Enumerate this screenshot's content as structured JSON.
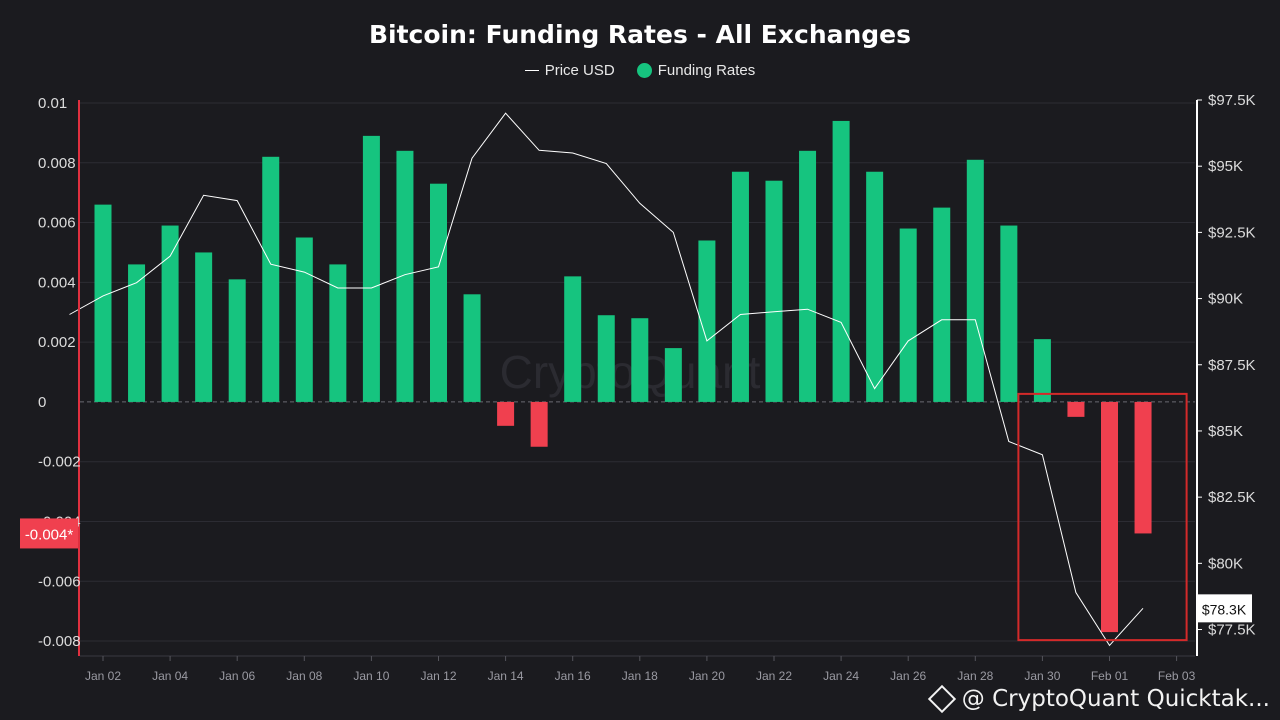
{
  "chart_data": {
    "type": "bar",
    "title": "Bitcoin: Funding Rates - All Exchanges",
    "legend": [
      {
        "name": "Price USD",
        "marker": "line",
        "color": "#ffffff"
      },
      {
        "name": "Funding Rates",
        "marker": "dot",
        "color": "#16c47f"
      }
    ],
    "legend_position": "top-center",
    "x_tick_labels": [
      "Jan 02",
      "Jan 04",
      "Jan 06",
      "Jan 08",
      "Jan 10",
      "Jan 12",
      "Jan 14",
      "Jan 16",
      "Jan 18",
      "Jan 20",
      "Jan 22",
      "Jan 24",
      "Jan 26",
      "Jan 28",
      "Jan 30",
      "Feb 01",
      "Feb 03"
    ],
    "categories": [
      "Jan 02",
      "Jan 03",
      "Jan 04",
      "Jan 05",
      "Jan 06",
      "Jan 07",
      "Jan 08",
      "Jan 09",
      "Jan 10",
      "Jan 11",
      "Jan 12",
      "Jan 13",
      "Jan 14",
      "Jan 15",
      "Jan 16",
      "Jan 17",
      "Jan 18",
      "Jan 19",
      "Jan 20",
      "Jan 21",
      "Jan 22",
      "Jan 23",
      "Jan 24",
      "Jan 25",
      "Jan 26",
      "Jan 27",
      "Jan 28",
      "Jan 29",
      "Jan 30",
      "Jan 31",
      "Feb 01",
      "Feb 02"
    ],
    "series": [
      {
        "name": "Funding Rates",
        "axis": "left",
        "type": "bar",
        "positive_color": "#16c47f",
        "negative_color": "#f0404f",
        "values": [
          0.0066,
          0.0046,
          0.0059,
          0.005,
          0.0041,
          0.0082,
          0.0055,
          0.0046,
          0.0089,
          0.0084,
          0.0073,
          0.0036,
          -0.0008,
          -0.0015,
          0.0042,
          0.0029,
          0.0028,
          0.0018,
          0.0054,
          0.0077,
          0.0074,
          0.0084,
          0.0094,
          0.0077,
          0.0058,
          0.0065,
          0.0081,
          0.0059,
          0.0021,
          -0.0005,
          -0.0077,
          -0.0044
        ]
      },
      {
        "name": "Price USD",
        "axis": "right",
        "type": "line",
        "color": "#ffffff",
        "x": [
          "Jan 01",
          "Jan 02",
          "Jan 03",
          "Jan 04",
          "Jan 05",
          "Jan 06",
          "Jan 07",
          "Jan 08",
          "Jan 09",
          "Jan 10",
          "Jan 11",
          "Jan 12",
          "Jan 13",
          "Jan 14",
          "Jan 15",
          "Jan 16",
          "Jan 17",
          "Jan 18",
          "Jan 19",
          "Jan 20",
          "Jan 21",
          "Jan 22",
          "Jan 23",
          "Jan 24",
          "Jan 25",
          "Jan 26",
          "Jan 27",
          "Jan 28",
          "Jan 29",
          "Jan 30",
          "Jan 31",
          "Feb 01",
          "Feb 02"
        ],
        "values": [
          89400,
          90100,
          90600,
          91600,
          93900,
          93700,
          91300,
          91000,
          90400,
          90400,
          90900,
          91200,
          95300,
          97000,
          95600,
          95500,
          95100,
          93600,
          92500,
          88400,
          89400,
          89500,
          89600,
          89100,
          86600,
          88400,
          89200,
          89200,
          84600,
          84100,
          78900,
          76900,
          78300
        ]
      }
    ],
    "y_left": {
      "ticks": [
        0.01,
        0.008,
        0.006,
        0.004,
        0.002,
        0,
        -0.002,
        -0.004,
        -0.006,
        -0.008
      ],
      "tick_labels": [
        "0.01",
        "0.008",
        "0.006",
        "0.004",
        "0.002",
        "0",
        "-0.002",
        "-0.004",
        "-0.006",
        "-0.008"
      ],
      "range": [
        -0.0085,
        0.0101
      ],
      "current_label": "-0.004*",
      "current_value": -0.0044
    },
    "y_right": {
      "ticks": [
        97500,
        95000,
        92500,
        90000,
        87500,
        85000,
        82500,
        80000,
        77500
      ],
      "tick_labels": [
        "$97.5K",
        "$95K",
        "$92.5K",
        "$90K",
        "$87.5K",
        "$85K",
        "$82.5K",
        "$80K",
        "$77.5K"
      ],
      "range": [
        76500,
        97500
      ],
      "current_label": "$78.3K",
      "current_value": 78300
    },
    "grid": true,
    "highlight_box": {
      "from_category": "Jan 30",
      "to_category": "Feb 03",
      "color": "#d42a2a"
    },
    "watermark": "CryptoQuant"
  },
  "attribution": "@ CryptoQuant Quicktak..."
}
